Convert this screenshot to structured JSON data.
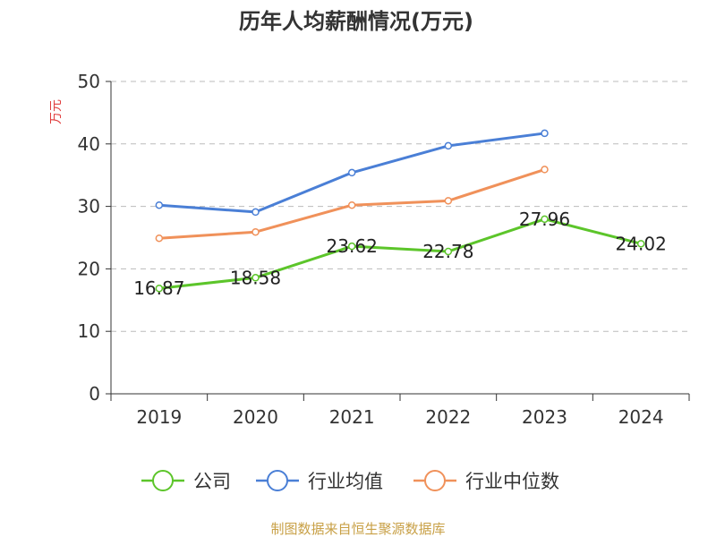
{
  "title": "历年人均薪酬情况(万元)",
  "source": "制图数据来自恒生聚源数据库",
  "chart_data": {
    "type": "line",
    "title": "历年人均薪酬情况(万元)",
    "ylabel": "万元",
    "xlabel": "",
    "categories": [
      "2019",
      "2020",
      "2021",
      "2022",
      "2023",
      "2024"
    ],
    "ylim": [
      0,
      50
    ],
    "yticks": [
      0,
      10,
      20,
      30,
      40,
      50
    ],
    "grid": true,
    "legend_position": "bottom",
    "series": [
      {
        "name": "公司",
        "color": "#5cc52a",
        "values": [
          16.87,
          18.58,
          23.62,
          22.78,
          27.96,
          24.02
        ],
        "labels": [
          "16.87",
          "18.58",
          "23.62",
          "22.78",
          "27.96",
          "24.02"
        ]
      },
      {
        "name": "行业均值",
        "color": "#4a7fd6",
        "values": [
          30.2,
          29.1,
          35.4,
          39.7,
          41.7,
          null
        ]
      },
      {
        "name": "行业中位数",
        "color": "#f0915a",
        "values": [
          24.9,
          25.9,
          30.2,
          30.9,
          35.9,
          null
        ]
      }
    ]
  }
}
